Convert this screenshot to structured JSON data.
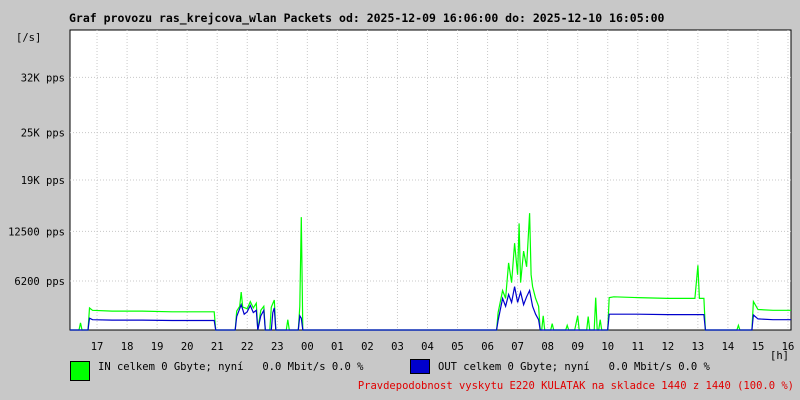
{
  "title": "Graf provozu ras_krejcova_wlan Packets od: 2025-12-09 16:06:00 do: 2025-12-10 16:05:00",
  "footer": "Pravdepodobnost vyskytu E220 KULATAK na skladce 1440 z 1440 (100.0 %)",
  "legend": {
    "in": {
      "label": "IN celkem 0 Gbyte; nyní   0.0 Mbit/s 0.0 %",
      "color": "#00ff00"
    },
    "out": {
      "label": "OUT celkem 0 Gbyte; nyní   0.0 Mbit/s 0.0 %",
      "color": "#0000cc"
    }
  },
  "chart_data": {
    "type": "line",
    "ylabel": "[/s]",
    "xlabel": "[h]",
    "ylim": [
      0,
      38000
    ],
    "y_ticks": [
      {
        "value": 6200,
        "label": "6200 pps"
      },
      {
        "value": 12500,
        "label": "12500 pps"
      },
      {
        "value": 19000,
        "label": "19K pps"
      },
      {
        "value": 25000,
        "label": "25K pps"
      },
      {
        "value": 32000,
        "label": "32K pps"
      }
    ],
    "x_range": [
      16.1,
      40.1
    ],
    "x_ticks": [
      {
        "value": 17,
        "label": "17"
      },
      {
        "value": 18,
        "label": "18"
      },
      {
        "value": 19,
        "label": "19"
      },
      {
        "value": 20,
        "label": "20"
      },
      {
        "value": 21,
        "label": "21"
      },
      {
        "value": 22,
        "label": "22"
      },
      {
        "value": 23,
        "label": "23"
      },
      {
        "value": 24,
        "label": "00"
      },
      {
        "value": 25,
        "label": "01"
      },
      {
        "value": 26,
        "label": "02"
      },
      {
        "value": 27,
        "label": "03"
      },
      {
        "value": 28,
        "label": "04"
      },
      {
        "value": 29,
        "label": "05"
      },
      {
        "value": 30,
        "label": "06"
      },
      {
        "value": 31,
        "label": "07"
      },
      {
        "value": 32,
        "label": "08"
      },
      {
        "value": 33,
        "label": "09"
      },
      {
        "value": 34,
        "label": "10"
      },
      {
        "value": 35,
        "label": "11"
      },
      {
        "value": 36,
        "label": "12"
      },
      {
        "value": 37,
        "label": "13"
      },
      {
        "value": 38,
        "label": "14"
      },
      {
        "value": 39,
        "label": "15"
      },
      {
        "value": 40,
        "label": "16"
      }
    ],
    "grid": true,
    "series": [
      {
        "name": "IN",
        "color": "#00ff00",
        "points": [
          [
            16.1,
            0
          ],
          [
            16.4,
            0
          ],
          [
            16.45,
            900
          ],
          [
            16.5,
            0
          ],
          [
            16.7,
            0
          ],
          [
            16.75,
            2800
          ],
          [
            16.85,
            2500
          ],
          [
            17.5,
            2400
          ],
          [
            18.5,
            2400
          ],
          [
            19.5,
            2300
          ],
          [
            20.5,
            2300
          ],
          [
            20.9,
            2300
          ],
          [
            20.95,
            0
          ],
          [
            21.6,
            0
          ],
          [
            21.65,
            2400
          ],
          [
            21.75,
            3000
          ],
          [
            21.8,
            4800
          ],
          [
            21.85,
            2900
          ],
          [
            22.0,
            2700
          ],
          [
            22.1,
            3600
          ],
          [
            22.2,
            2800
          ],
          [
            22.3,
            3400
          ],
          [
            22.35,
            0
          ],
          [
            22.45,
            2500
          ],
          [
            22.55,
            3000
          ],
          [
            22.6,
            0
          ],
          [
            22.75,
            0
          ],
          [
            22.8,
            2900
          ],
          [
            22.9,
            3800
          ],
          [
            22.95,
            0
          ],
          [
            23.3,
            0
          ],
          [
            23.35,
            1300
          ],
          [
            23.4,
            0
          ],
          [
            23.7,
            0
          ],
          [
            23.75,
            3000
          ],
          [
            23.8,
            14300
          ],
          [
            23.85,
            0
          ],
          [
            30.3,
            0
          ],
          [
            30.35,
            2200
          ],
          [
            30.5,
            5000
          ],
          [
            30.6,
            4000
          ],
          [
            30.7,
            8500
          ],
          [
            30.8,
            6000
          ],
          [
            30.9,
            11000
          ],
          [
            31.0,
            7000
          ],
          [
            31.05,
            13500
          ],
          [
            31.1,
            6000
          ],
          [
            31.2,
            10000
          ],
          [
            31.3,
            8000
          ],
          [
            31.4,
            14800
          ],
          [
            31.45,
            7000
          ],
          [
            31.5,
            5500
          ],
          [
            31.6,
            4000
          ],
          [
            31.7,
            3000
          ],
          [
            31.75,
            0
          ],
          [
            31.8,
            0
          ],
          [
            31.85,
            1800
          ],
          [
            31.9,
            0
          ],
          [
            32.1,
            0
          ],
          [
            32.15,
            800
          ],
          [
            32.2,
            0
          ],
          [
            32.6,
            0
          ],
          [
            32.65,
            600
          ],
          [
            32.7,
            0
          ],
          [
            32.9,
            0
          ],
          [
            33.0,
            1800
          ],
          [
            33.05,
            0
          ],
          [
            33.3,
            0
          ],
          [
            33.35,
            1700
          ],
          [
            33.4,
            0
          ],
          [
            33.55,
            0
          ],
          [
            33.6,
            4100
          ],
          [
            33.65,
            0
          ],
          [
            33.7,
            0
          ],
          [
            33.75,
            1300
          ],
          [
            33.8,
            0
          ],
          [
            34.0,
            0
          ],
          [
            34.05,
            4100
          ],
          [
            34.2,
            4200
          ],
          [
            35.0,
            4100
          ],
          [
            36.0,
            4000
          ],
          [
            36.9,
            4000
          ],
          [
            37.0,
            8200
          ],
          [
            37.05,
            4000
          ],
          [
            37.2,
            4000
          ],
          [
            37.25,
            0
          ],
          [
            38.3,
            0
          ],
          [
            38.35,
            600
          ],
          [
            38.4,
            0
          ],
          [
            38.8,
            0
          ],
          [
            38.85,
            3600
          ],
          [
            39.0,
            2600
          ],
          [
            39.5,
            2500
          ],
          [
            40.1,
            2500
          ]
        ]
      },
      {
        "name": "OUT",
        "color": "#0000cc",
        "points": [
          [
            16.1,
            0
          ],
          [
            16.7,
            0
          ],
          [
            16.75,
            1500
          ],
          [
            16.85,
            1300
          ],
          [
            17.5,
            1250
          ],
          [
            18.5,
            1250
          ],
          [
            19.5,
            1200
          ],
          [
            20.5,
            1200
          ],
          [
            20.9,
            1200
          ],
          [
            20.95,
            0
          ],
          [
            21.6,
            0
          ],
          [
            21.65,
            1700
          ],
          [
            21.8,
            3200
          ],
          [
            21.9,
            2000
          ],
          [
            22.0,
            2300
          ],
          [
            22.1,
            3100
          ],
          [
            22.2,
            2200
          ],
          [
            22.3,
            2500
          ],
          [
            22.35,
            0
          ],
          [
            22.45,
            1800
          ],
          [
            22.55,
            2500
          ],
          [
            22.6,
            0
          ],
          [
            22.8,
            0
          ],
          [
            22.85,
            2200
          ],
          [
            22.9,
            2800
          ],
          [
            22.95,
            0
          ],
          [
            23.7,
            0
          ],
          [
            23.75,
            1800
          ],
          [
            23.8,
            1500
          ],
          [
            23.85,
            0
          ],
          [
            30.3,
            0
          ],
          [
            30.35,
            1200
          ],
          [
            30.5,
            4000
          ],
          [
            30.6,
            3000
          ],
          [
            30.7,
            4500
          ],
          [
            30.8,
            3500
          ],
          [
            30.9,
            5500
          ],
          [
            31.0,
            3500
          ],
          [
            31.1,
            4800
          ],
          [
            31.2,
            3200
          ],
          [
            31.3,
            4200
          ],
          [
            31.4,
            5000
          ],
          [
            31.5,
            3000
          ],
          [
            31.6,
            2000
          ],
          [
            31.7,
            1300
          ],
          [
            31.75,
            0
          ],
          [
            33.9,
            0
          ],
          [
            34.0,
            0
          ],
          [
            34.05,
            2000
          ],
          [
            34.2,
            2000
          ],
          [
            35.0,
            2000
          ],
          [
            36.0,
            1950
          ],
          [
            37.0,
            1950
          ],
          [
            37.2,
            1950
          ],
          [
            37.25,
            0
          ],
          [
            38.8,
            0
          ],
          [
            38.85,
            1900
          ],
          [
            39.0,
            1400
          ],
          [
            39.5,
            1300
          ],
          [
            40.1,
            1300
          ]
        ]
      }
    ]
  }
}
